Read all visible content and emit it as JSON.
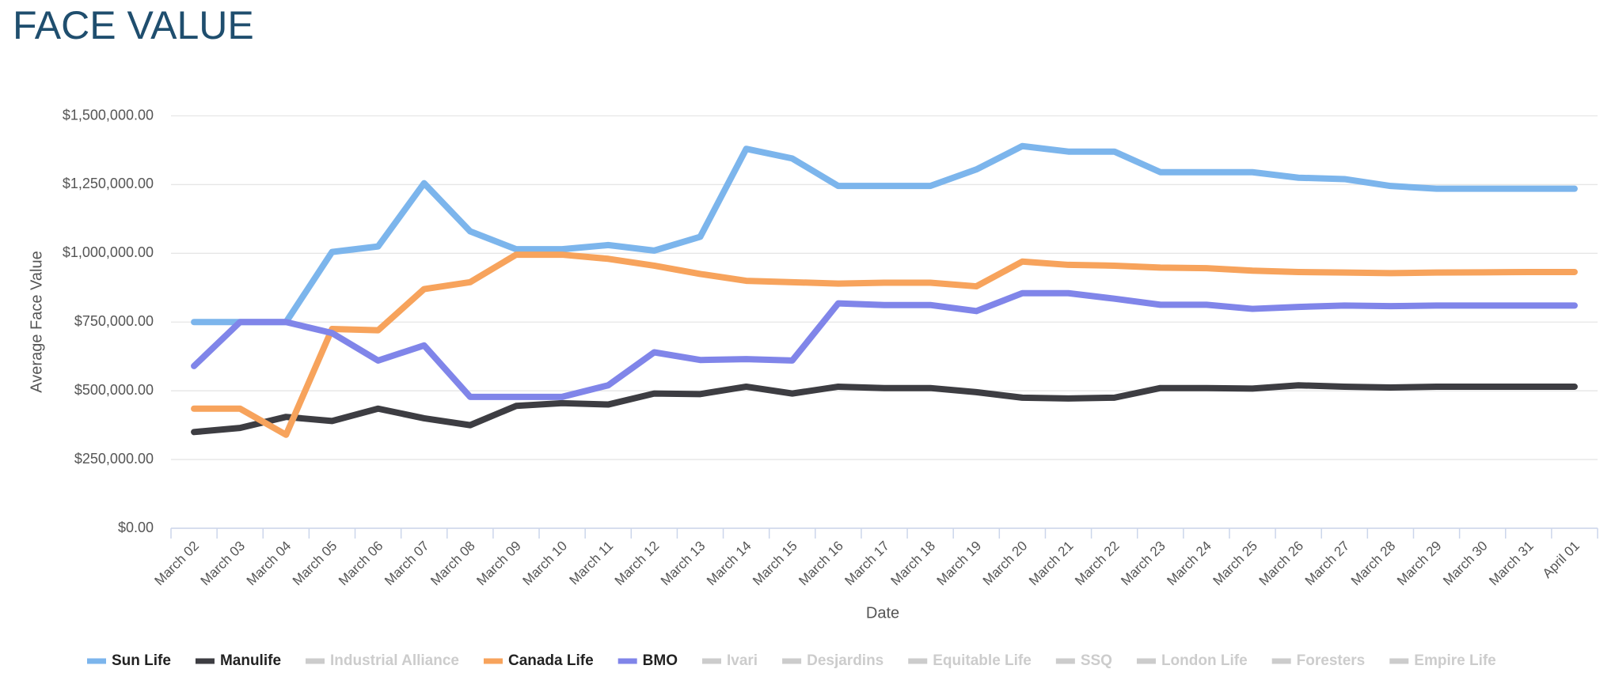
{
  "chart_data": {
    "type": "line",
    "title": "FACE VALUE",
    "x_label": "Date",
    "y_label": "Average Face Value",
    "categories": [
      "March 02",
      "March 03",
      "March 04",
      "March 05",
      "March 06",
      "March 07",
      "March 08",
      "March 09",
      "March 10",
      "March 11",
      "March 12",
      "March 13",
      "March 14",
      "March 15",
      "March 16",
      "March 17",
      "March 18",
      "March 19",
      "March 20",
      "March 21",
      "March 22",
      "March 23",
      "March 24",
      "March 25",
      "March 26",
      "March 27",
      "March 28",
      "March 29",
      "March 30",
      "March 31",
      "April 01"
    ],
    "ylim": [
      0,
      1500000
    ],
    "yticks": [
      {
        "value": 0,
        "label": "$0.00"
      },
      {
        "value": 250000,
        "label": "$250,000.00"
      },
      {
        "value": 500000,
        "label": "$500,000.00"
      },
      {
        "value": 750000,
        "label": "$750,000.00"
      },
      {
        "value": 1000000,
        "label": "$1,000,000.00"
      },
      {
        "value": 1250000,
        "label": "$1,250,000.00"
      },
      {
        "value": 1500000,
        "label": "$1,500,000.00"
      }
    ],
    "grid": true,
    "legend": "bottom",
    "series": [
      {
        "name": "Sun Life",
        "color": "#7cb5ec",
        "visible": true,
        "values": [
          750000,
          750000,
          750000,
          1005000,
          1025000,
          1255000,
          1080000,
          1015000,
          1015000,
          1030000,
          1010000,
          1060000,
          1380000,
          1345000,
          1245000,
          1245000,
          1245000,
          1305000,
          1390000,
          1370000,
          1370000,
          1295000,
          1295000,
          1295000,
          1275000,
          1270000,
          1245000,
          1235000,
          1235000,
          1235000,
          1235000
        ]
      },
      {
        "name": "Manulife",
        "color": "#3d3d42",
        "visible": true,
        "values": [
          350000,
          365000,
          405000,
          390000,
          435000,
          400000,
          375000,
          445000,
          455000,
          450000,
          490000,
          488000,
          515000,
          490000,
          515000,
          510000,
          510000,
          495000,
          475000,
          472000,
          475000,
          510000,
          510000,
          508000,
          520000,
          515000,
          512000,
          515000,
          515000,
          515000,
          515000
        ]
      },
      {
        "name": "Industrial Alliance",
        "color": "#cccccc",
        "visible": false
      },
      {
        "name": "Canada Life",
        "color": "#f7a35c",
        "visible": true,
        "values": [
          435000,
          435000,
          340000,
          725000,
          720000,
          870000,
          895000,
          995000,
          995000,
          980000,
          955000,
          925000,
          900000,
          895000,
          890000,
          893000,
          893000,
          880000,
          970000,
          958000,
          955000,
          948000,
          946000,
          937000,
          932000,
          930000,
          928000,
          930000,
          931000,
          932000,
          932000
        ]
      },
      {
        "name": "BMO",
        "color": "#8085e9",
        "visible": true,
        "values": [
          590000,
          750000,
          750000,
          710000,
          610000,
          665000,
          478000,
          478000,
          478000,
          520000,
          640000,
          612000,
          615000,
          610000,
          818000,
          812000,
          812000,
          790000,
          855000,
          855000,
          835000,
          813000,
          813000,
          798000,
          805000,
          810000,
          808000,
          810000,
          810000,
          810000,
          810000
        ]
      },
      {
        "name": "Ivari",
        "color": "#cccccc",
        "visible": false
      },
      {
        "name": "Desjardins",
        "color": "#cccccc",
        "visible": false
      },
      {
        "name": "Equitable Life",
        "color": "#cccccc",
        "visible": false
      },
      {
        "name": "SSQ",
        "color": "#cccccc",
        "visible": false
      },
      {
        "name": "London Life",
        "color": "#cccccc",
        "visible": false
      },
      {
        "name": "Foresters",
        "color": "#cccccc",
        "visible": false
      },
      {
        "name": "Empire Life",
        "color": "#cccccc",
        "visible": false
      }
    ]
  }
}
